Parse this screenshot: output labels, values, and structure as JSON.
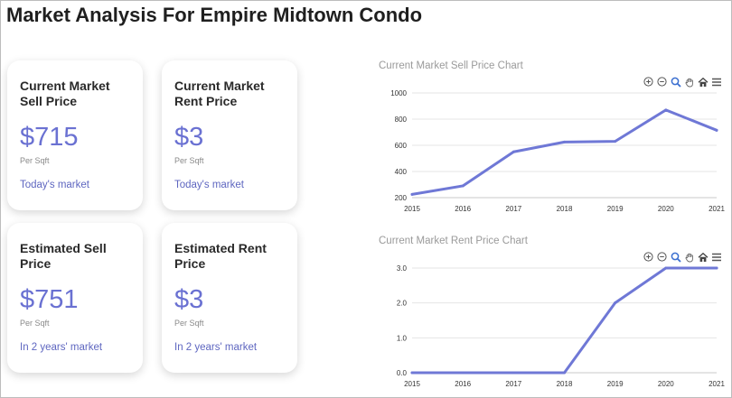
{
  "page": {
    "title": "Market Analysis For Empire Midtown Condo"
  },
  "cards": [
    {
      "title": "Current Market\nSell Price",
      "value": "$715",
      "unit": "Per Sqft",
      "footer": "Today's market"
    },
    {
      "title": "Current Market\nRent Price",
      "value": "$3",
      "unit": "Per Sqft",
      "footer": "Today's market"
    },
    {
      "title": "Estimated Sell\nPrice",
      "value": "$751",
      "unit": "Per Sqft",
      "footer": "In 2 years' market"
    },
    {
      "title": "Estimated Rent\nPrice",
      "value": "$3",
      "unit": "Per Sqft",
      "footer": "In 2 years' market"
    }
  ],
  "colors": {
    "accent": "#6a71d2",
    "line": "#6f78d6",
    "grid": "#e4e4e4"
  },
  "toolbar_icons": [
    "zoom-in-icon",
    "zoom-out-icon",
    "zoom-select-icon",
    "pan-hand-icon",
    "home-icon",
    "menu-icon"
  ],
  "chart_data": [
    {
      "type": "line",
      "title": "Current Market Sell Price Chart",
      "x": [
        "2015",
        "2016",
        "2017",
        "2018",
        "2019",
        "2020",
        "2021"
      ],
      "values": [
        225,
        290,
        550,
        625,
        630,
        870,
        715
      ],
      "ylim": [
        200,
        1000
      ],
      "yticks": [
        "200",
        "400",
        "600",
        "800",
        "1000"
      ],
      "grid": true
    },
    {
      "type": "line",
      "title": "Current Market Rent Price Chart",
      "x": [
        "2015",
        "2016",
        "2017",
        "2018",
        "2019",
        "2020",
        "2021"
      ],
      "values": [
        0,
        0,
        0,
        0,
        2,
        3,
        3
      ],
      "ylim": [
        0,
        3
      ],
      "yticks": [
        "0.0",
        "1.0",
        "2.0",
        "3.0"
      ],
      "grid": true
    }
  ]
}
